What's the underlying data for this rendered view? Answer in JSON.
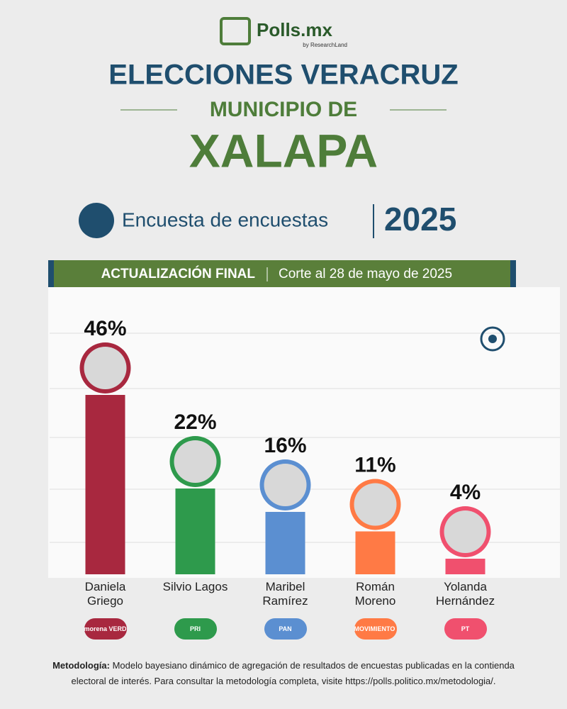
{
  "header": {
    "brand": "Polls.mx",
    "brand_sub": "by ResearchLand",
    "title": "ELECCIONES VERACRUZ",
    "subtitle": "MUNICIPIO DE",
    "city": "XALAPA",
    "survey": "Encuesta de encuestas",
    "year": "2025",
    "banner_bold": "ACTUALIZACIÓN FINAL",
    "banner_text": "Corte al 28 de mayo de 2025"
  },
  "chart_data": {
    "type": "bar",
    "categories": [
      "Daniela Griego",
      "Silvio Lagos",
      "Maribel Ramírez",
      "Román Moreno",
      "Yolanda Hernández"
    ],
    "values": [
      46,
      22,
      16,
      11,
      4
    ],
    "value_labels": [
      "46%",
      "22%",
      "16%",
      "11%",
      "4%"
    ],
    "colors": [
      "#a8283f",
      "#2e9a4c",
      "#5b8fd1",
      "#ff7a45",
      "#f0506e"
    ],
    "parties": [
      "morena VERDE",
      "PRI",
      "PAN",
      "MOVIMIENTO CIUDADANO",
      "PT"
    ],
    "ylim": [
      0,
      70
    ]
  },
  "footer": {
    "label": "Metodología:",
    "text": "Modelo bayesiano dinámico de agregación de resultados de encuestas publicadas en la contienda electoral de interés. Para consultar la metodología completa, visite https://polls.politico.mx/metodologia/."
  }
}
